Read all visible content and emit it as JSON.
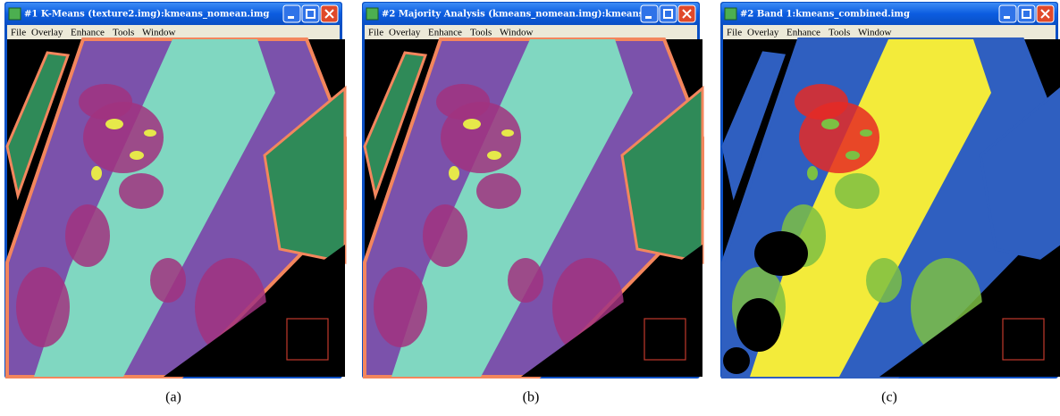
{
  "windows": [
    {
      "title": "#1 K-Means (texture2.img):kmeans_nomean.img",
      "menu": [
        "File",
        "Overlay",
        "Enhance",
        "Tools",
        "Window"
      ],
      "caption": "(a)"
    },
    {
      "title": "#2 Majority Analysis (kmeans_nomean.img):kmeans...",
      "menu": [
        "File",
        "Overlay",
        "Enhance",
        "Tools",
        "Window"
      ],
      "caption": "(b)"
    },
    {
      "title": "#2 Band 1:kmeans_combined.img",
      "menu": [
        "File",
        "Overlay",
        "Enhance",
        "Tools",
        "Window"
      ],
      "caption": "(c)"
    }
  ]
}
